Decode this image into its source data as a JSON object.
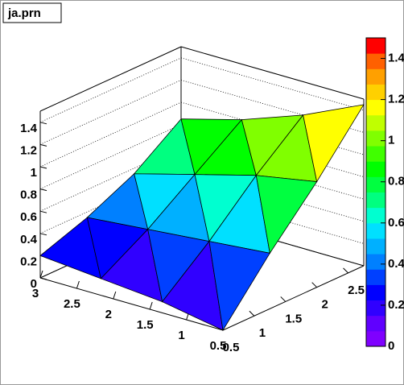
{
  "chart_data": {
    "type": "surface",
    "title": "ja.prn",
    "x": [
      0.5,
      1.33,
      2.17,
      3
    ],
    "y": [
      0.5,
      1.25,
      2,
      2.75
    ],
    "z": [
      [
        0,
        0.5,
        0.95,
        1.45
      ],
      [
        0.1,
        0.45,
        0.85,
        1.2
      ],
      [
        0.15,
        0.4,
        0.7,
        1.0
      ],
      [
        0.2,
        0.35,
        0.55,
        0.85
      ]
    ],
    "xlim": [
      0.5,
      3
    ],
    "ylim": [
      0.5,
      2.75
    ],
    "zlim": [
      0,
      1.5
    ],
    "xticks": [
      0.5,
      1,
      1.5,
      2,
      2.5,
      3
    ],
    "yticks": [
      0.5,
      1,
      1.5,
      2,
      2.5
    ],
    "zticks": [
      0,
      0.2,
      0.4,
      0.6,
      0.8,
      1,
      1.2,
      1.4
    ],
    "palette": [
      "#7f00ff",
      "#6000ff",
      "#3000ff",
      "#0000ff",
      "#0040ff",
      "#0080ff",
      "#00b0ff",
      "#00e0ff",
      "#00ffd0",
      "#00ff80",
      "#00ff40",
      "#00ff00",
      "#40ff00",
      "#80ff00",
      "#c0ff00",
      "#ffff00",
      "#ffd000",
      "#ffa000",
      "#ff6000",
      "#ff0000"
    ],
    "grid": true
  }
}
